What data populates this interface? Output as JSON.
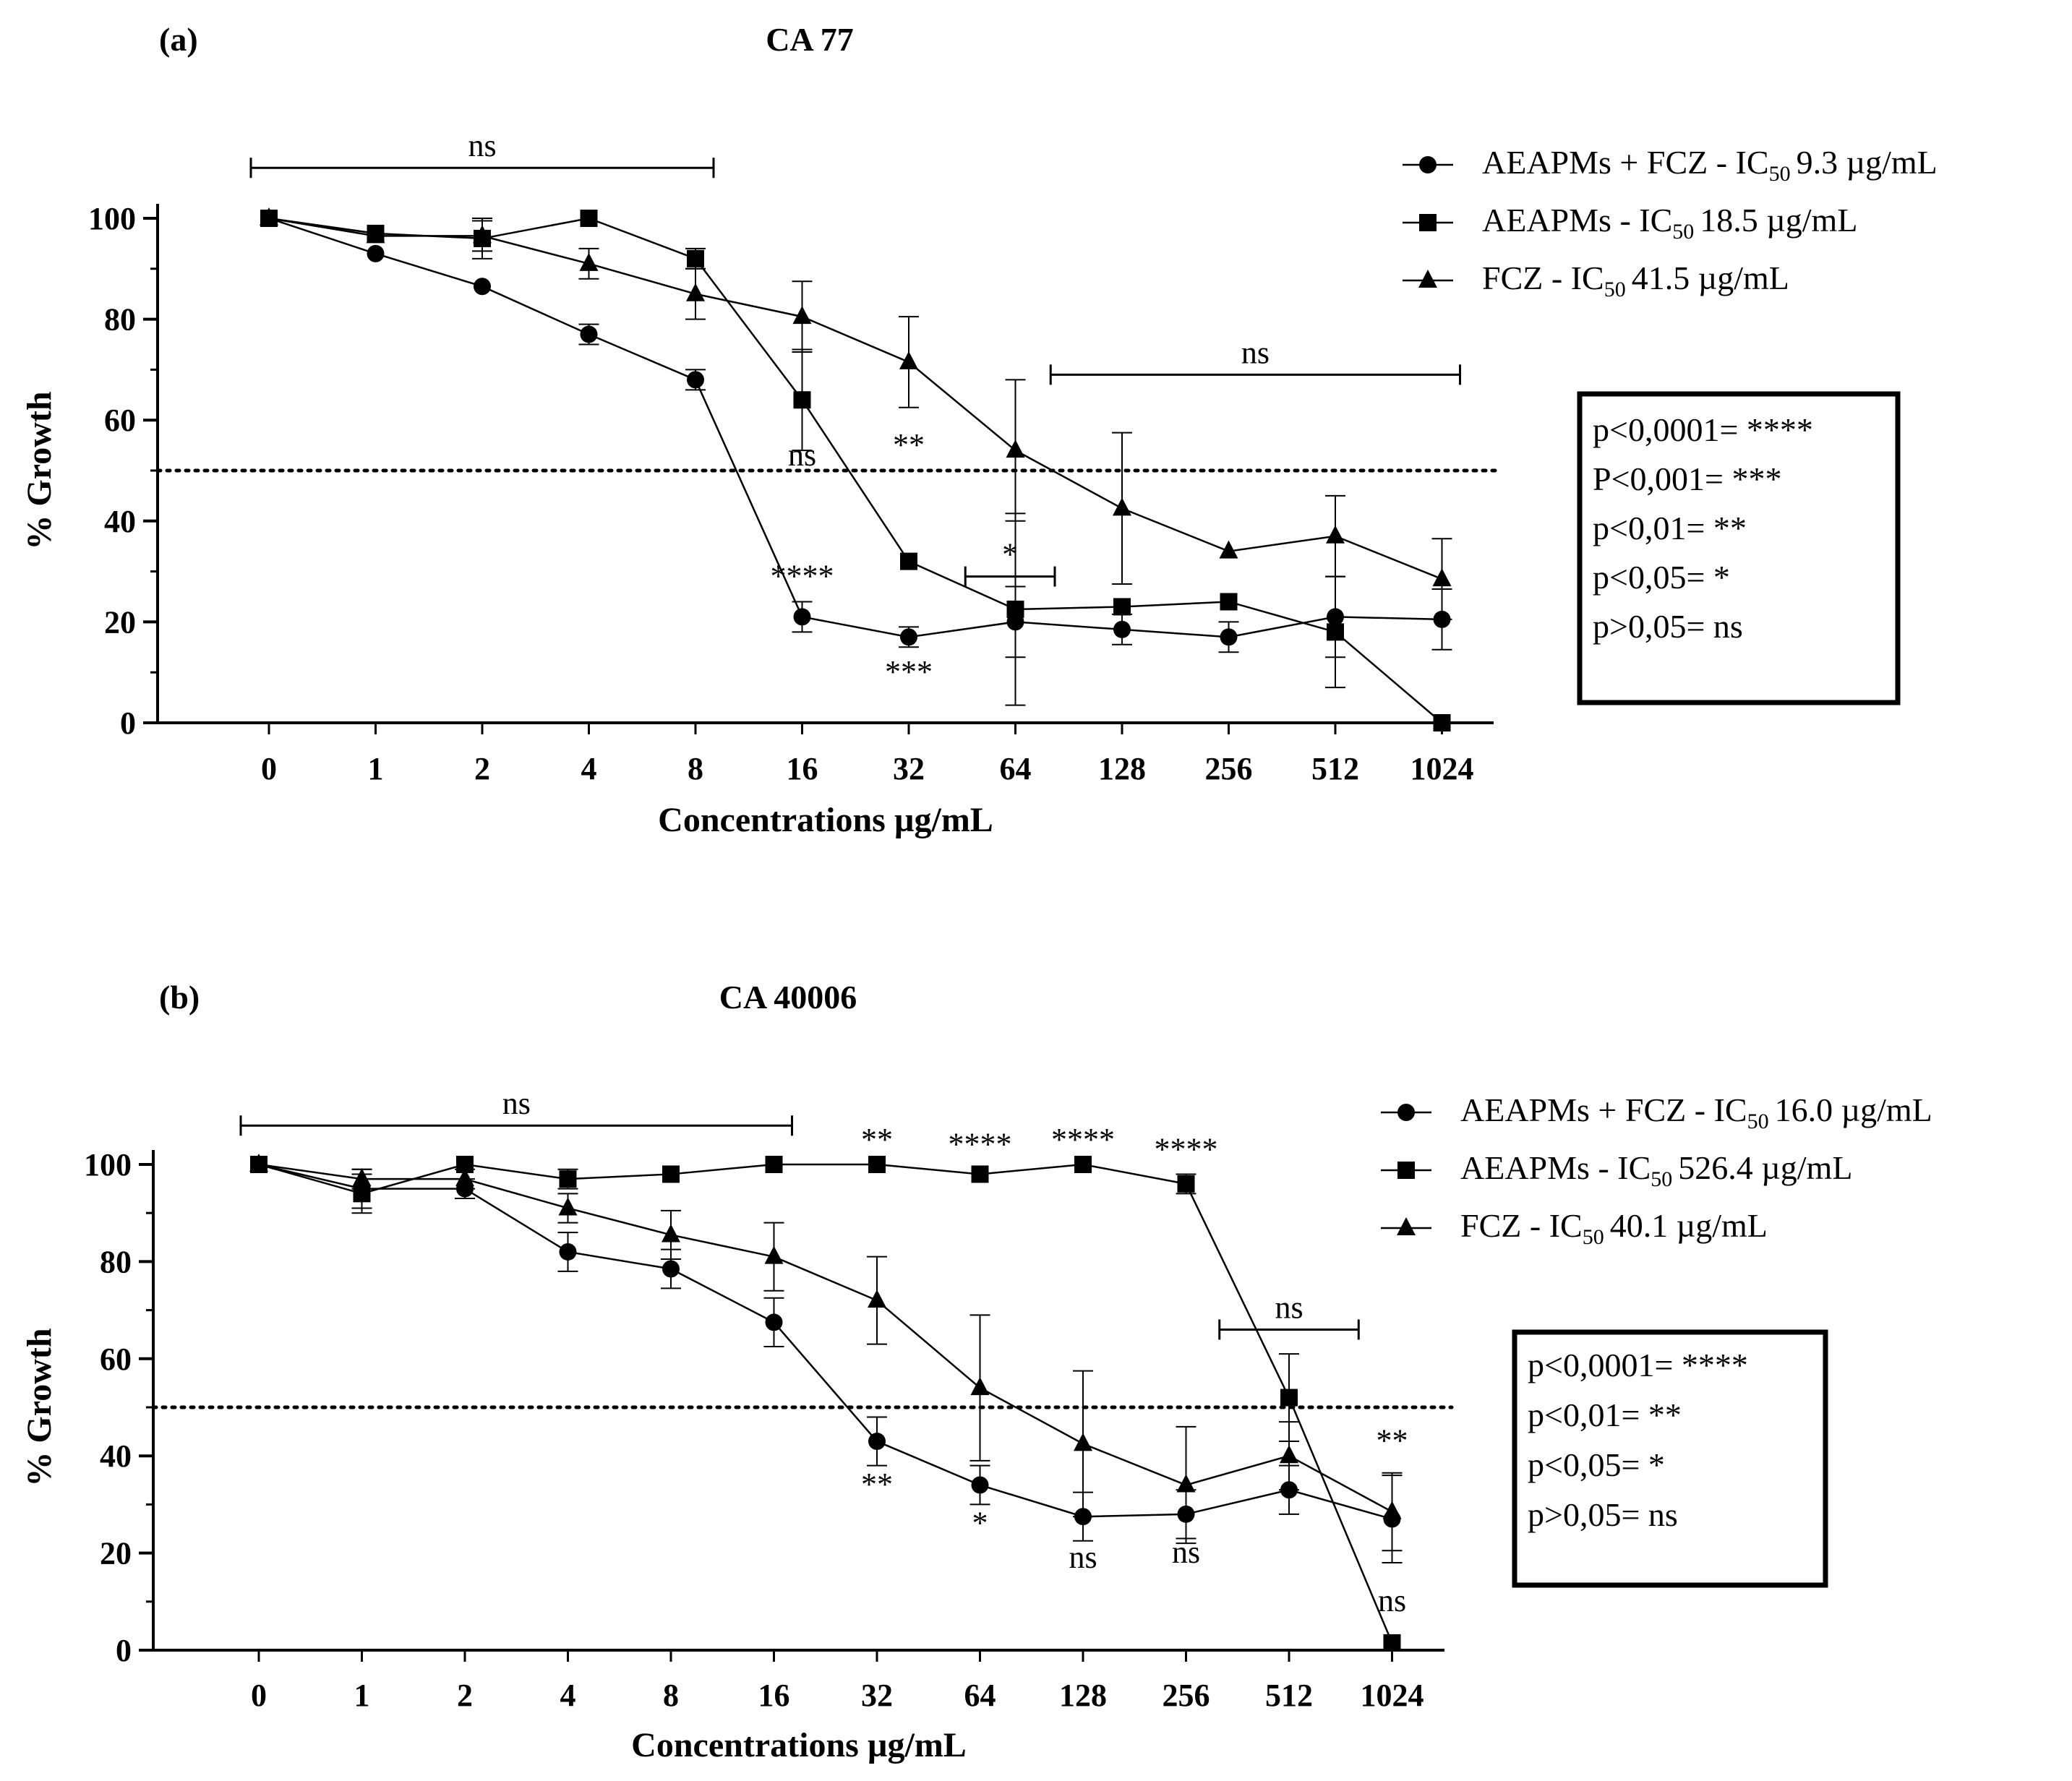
{
  "chart_data": [
    {
      "type": "line",
      "panel_label": "(a)",
      "title": "CA 77",
      "xlabel": "Concentrations µg/mL",
      "ylabel": "% Growth",
      "categories": [
        "0",
        "1",
        "2",
        "4",
        "8",
        "16",
        "32",
        "64",
        "128",
        "256",
        "512",
        "1024"
      ],
      "ylim": [
        0,
        100
      ],
      "yticks": [
        "0",
        "20",
        "40",
        "60",
        "80",
        "100"
      ],
      "threshold": 50,
      "series": [
        {
          "name": "AEAPMs + FCZ",
          "ic50_label": "IC",
          "ic50_sub": "50",
          "ic50_value": "9.3 µg/mL",
          "marker": "circle",
          "values": [
            100,
            93,
            86.5,
            77,
            68,
            21,
            17,
            20,
            18.5,
            17,
            21,
            20.5
          ],
          "errors": [
            0,
            0,
            0,
            2,
            2,
            3,
            2,
            7,
            3,
            3,
            8,
            6
          ]
        },
        {
          "name": "AEAPMs",
          "ic50_label": "IC",
          "ic50_sub": "50",
          "ic50_value": "18.5 µg/mL",
          "marker": "square",
          "values": [
            100,
            97,
            96,
            100,
            92,
            64,
            32,
            22.5,
            23,
            24,
            18,
            0
          ],
          "errors": [
            0,
            0,
            4,
            0,
            2,
            10,
            0,
            19,
            0,
            0,
            11,
            0
          ]
        },
        {
          "name": "FCZ",
          "ic50_label": "IC",
          "ic50_sub": "50",
          "ic50_value": "41.5 µg/mL",
          "marker": "triangle",
          "values": [
            100,
            96.5,
            96.5,
            91,
            85,
            80.5,
            71.5,
            54,
            42.5,
            34,
            37,
            28.5
          ],
          "errors": [
            0,
            0,
            3,
            3,
            5,
            7,
            9,
            14,
            15,
            0,
            8,
            8
          ]
        }
      ],
      "annotations": [
        {
          "text": "ns",
          "bracket": [
            0,
            4
          ],
          "y": 110
        },
        {
          "text": "ns",
          "bracket": [
            7.5,
            11
          ],
          "y": 69
        },
        {
          "text": "ns",
          "x": 5,
          "y": 51
        },
        {
          "text": "****",
          "x": 5,
          "y": 27
        },
        {
          "text": "**",
          "x": 6,
          "y": 53
        },
        {
          "text": "***",
          "x": 6,
          "y": 8
        },
        {
          "text": "*",
          "bracket": [
            6.7,
            7.2
          ],
          "y": 29
        }
      ],
      "significance_key": [
        "p<0,0001= ****",
        "P<0,001= ***",
        "p<0,01= **",
        "p<0,05= *",
        "p>0,05= ns"
      ]
    },
    {
      "type": "line",
      "panel_label": "(b)",
      "title": "CA 40006",
      "xlabel": "Concentrations µg/mL",
      "ylabel": "% Growth",
      "categories": [
        "0",
        "1",
        "2",
        "4",
        "8",
        "16",
        "32",
        "64",
        "128",
        "256",
        "512",
        "1024"
      ],
      "ylim": [
        0,
        100
      ],
      "yticks": [
        "0",
        "20",
        "40",
        "60",
        "80",
        "100"
      ],
      "threshold": 50,
      "series": [
        {
          "name": "AEAPMs + FCZ",
          "ic50_label": "IC",
          "ic50_sub": "50",
          "ic50_value": "16.0 µg/mL",
          "marker": "circle",
          "values": [
            100,
            95,
            95,
            82,
            78.5,
            67.5,
            43,
            34,
            27.5,
            28,
            33,
            27
          ],
          "errors": [
            0,
            4,
            2,
            4,
            4,
            5,
            5,
            4,
            5,
            5,
            5,
            9
          ]
        },
        {
          "name": "AEAPMs",
          "ic50_label": "IC",
          "ic50_sub": "50",
          "ic50_value": "526.4 µg/mL",
          "marker": "square",
          "values": [
            100,
            94,
            100,
            97,
            98,
            100,
            100,
            98,
            100,
            96,
            52,
            1.5
          ],
          "errors": [
            0,
            4,
            0,
            2,
            0,
            0,
            0,
            0,
            0,
            2,
            9,
            0
          ]
        },
        {
          "name": "FCZ",
          "ic50_label": "IC",
          "ic50_sub": "50",
          "ic50_value": "40.1 µg/mL",
          "marker": "triangle",
          "values": [
            100,
            97,
            97,
            91,
            85.5,
            81,
            72,
            54,
            42.5,
            34,
            40,
            28.5
          ],
          "errors": [
            0,
            2,
            2,
            3,
            5,
            7,
            9,
            15,
            15,
            12,
            7,
            8
          ]
        }
      ],
      "annotations": [
        {
          "text": "ns",
          "bracket": [
            0,
            5
          ],
          "y": 108
        },
        {
          "text": "ns",
          "bracket": [
            9.5,
            10.5
          ],
          "y": 66
        },
        {
          "text": "**",
          "x": 6,
          "y": 103
        },
        {
          "text": "****",
          "x": 7,
          "y": 102
        },
        {
          "text": "****",
          "x": 8,
          "y": 103
        },
        {
          "text": "****",
          "x": 9,
          "y": 101
        },
        {
          "text": "**",
          "x": 6,
          "y": 32
        },
        {
          "text": "*",
          "x": 7,
          "y": 24
        },
        {
          "text": "ns",
          "x": 8,
          "y": 17
        },
        {
          "text": "ns",
          "x": 9,
          "y": 18
        },
        {
          "text": "**",
          "x": 11,
          "y": 41
        },
        {
          "text": "ns",
          "x": 11,
          "y": 8
        }
      ],
      "significance_key": [
        "p<0,0001= ****",
        "p<0,01= **",
        "p<0,05= *",
        "p>0,05= ns"
      ]
    }
  ]
}
